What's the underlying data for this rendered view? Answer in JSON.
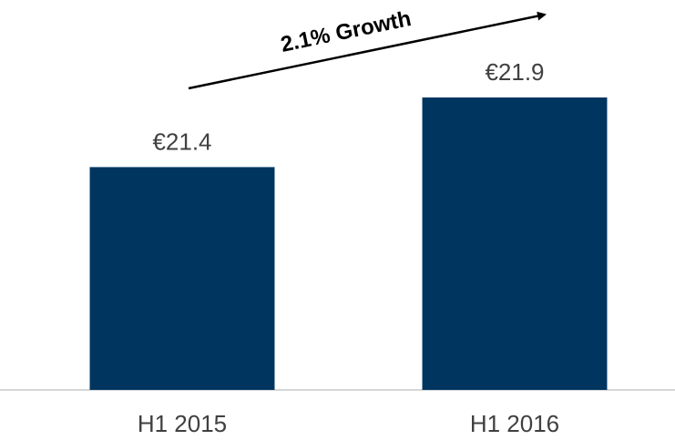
{
  "chart_data": {
    "type": "bar",
    "categories": [
      "H1 2015",
      "H1 2016"
    ],
    "values": [
      21.4,
      21.9
    ],
    "value_labels": [
      "€21.4",
      "€21.9"
    ],
    "color": "#003560",
    "ylim": [
      19.8,
      22.6
    ],
    "annotation": "2.1% Growth"
  }
}
